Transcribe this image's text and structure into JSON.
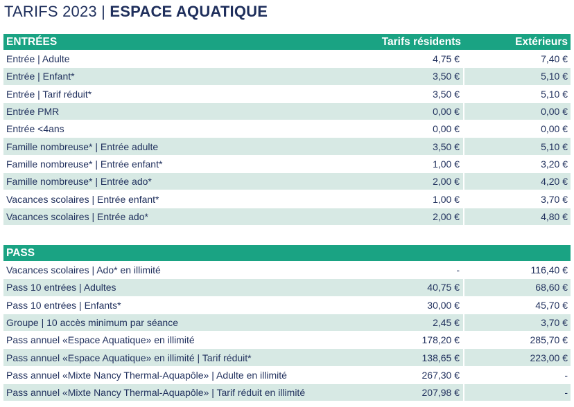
{
  "title": {
    "light": "TARIFS 2023 | ",
    "bold": "ESPACE AQUATIQUE"
  },
  "entrees": {
    "heading": "ENTRÉES",
    "col_res": "Tarifs résidents",
    "col_ext": "Extérieurs",
    "rows": [
      {
        "label": "Entrée | Adulte",
        "res": "4,75 €",
        "ext": "7,40 €"
      },
      {
        "label": "Entrée | Enfant*",
        "res": "3,50 €",
        "ext": "5,10 €"
      },
      {
        "label": "Entrée | Tarif réduit*",
        "res": "3,50 €",
        "ext": "5,10 €"
      },
      {
        "label": "Entrée PMR",
        "res": "0,00 €",
        "ext": "0,00 €"
      },
      {
        "label": "Entrée <4ans",
        "res": "0,00 €",
        "ext": "0,00 €"
      },
      {
        "label": "Famille nombreuse* | Entrée adulte",
        "res": "3,50 €",
        "ext": "5,10 €"
      },
      {
        "label": "Famille nombreuse* | Entrée enfant*",
        "res": "1,00 €",
        "ext": "3,20 €"
      },
      {
        "label": "Famille nombreuse* | Entrée ado*",
        "res": "2,00 €",
        "ext": "4,20 €"
      },
      {
        "label": "Vacances scolaires | Entrée enfant*",
        "res": "1,00 €",
        "ext": "3,70 €"
      },
      {
        "label": "Vacances scolaires | Entrée ado*",
        "res": "2,00 €",
        "ext": "4,80 €"
      }
    ]
  },
  "pass": {
    "heading": "PASS",
    "rows": [
      {
        "label": "Vacances scolaires | Ado* en illimité",
        "res": "-",
        "ext": "116,40 €"
      },
      {
        "label": "Pass 10 entrées | Adultes",
        "res": "40,75 €",
        "ext": "68,60 €"
      },
      {
        "label": "Pass 10 entrées | Enfants*",
        "res": "30,00 €",
        "ext": "45,70 €"
      },
      {
        "label": "Groupe | 10 accès minimum par séance",
        "res": "2,45 €",
        "ext": "3,70 €"
      },
      {
        "label": "Pass annuel «Espace Aquatique» en illimité",
        "res": "178,20 €",
        "ext": "285,70 €"
      },
      {
        "label": "Pass annuel «Espace Aquatique» en illimité | Tarif réduit*",
        "res": "138,65 €",
        "ext": "223,00 €"
      },
      {
        "label": "Pass annuel «Mixte Nancy Thermal-Aquapôle» | Adulte en illimité",
        "res": "267,30 €",
        "ext": "-"
      },
      {
        "label": "Pass annuel «Mixte Nancy Thermal-Aquapôle» | Tarif réduit en illimité",
        "res": "207,98 €",
        "ext": "-"
      }
    ]
  }
}
